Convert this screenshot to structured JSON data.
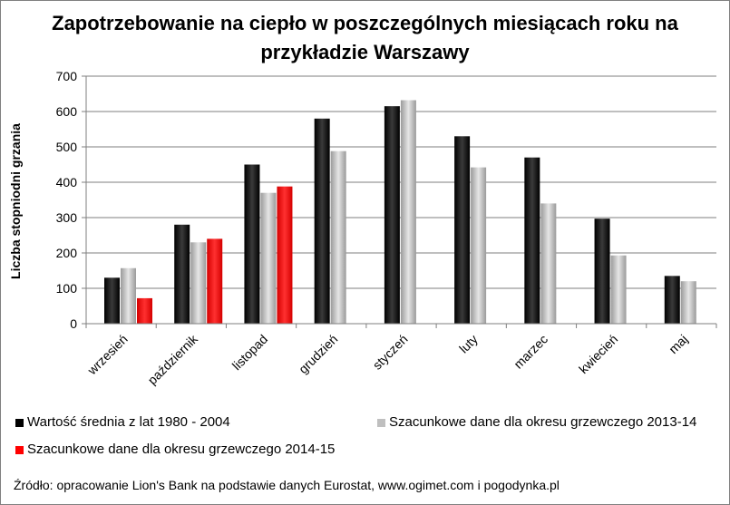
{
  "chart_data": {
    "type": "bar",
    "title_line1": "Zapotrzebowanie na ciepło w poszczególnych miesiącach roku na",
    "title_line2": "przykładzie Warszawy",
    "ylabel": "Liczba stopniodni grzania",
    "xlabel": "",
    "ylim": [
      0,
      700
    ],
    "yticks": [
      0,
      100,
      200,
      300,
      400,
      500,
      600,
      700
    ],
    "grid": true,
    "legend_placement": "bottom",
    "categories": [
      "wrzesień",
      "październik",
      "listopad",
      "grudzień",
      "styczeń",
      "luty",
      "marzec",
      "kwiecień",
      "maj"
    ],
    "series": [
      {
        "name": "Wartość średnia z lat 1980 - 2004",
        "color": "#0a0a0a",
        "values": [
          130,
          280,
          450,
          580,
          615,
          530,
          470,
          297,
          135
        ]
      },
      {
        "name": "Szacunkowe dane dla okresu grzewczego 2013-14",
        "color": "#bfbfbf",
        "values": [
          157,
          230,
          370,
          488,
          632,
          442,
          340,
          193,
          120
        ]
      },
      {
        "name": "Szacunkowe dane dla okresu grzewczego 2014-15",
        "color": "#ff0000",
        "values": [
          72,
          240,
          388,
          null,
          null,
          null,
          null,
          null,
          null
        ]
      }
    ],
    "source": "Źródło: opracowanie Lion's Bank na podstawie danych Eurostat, www.ogimet.com i pogodynka.pl"
  }
}
